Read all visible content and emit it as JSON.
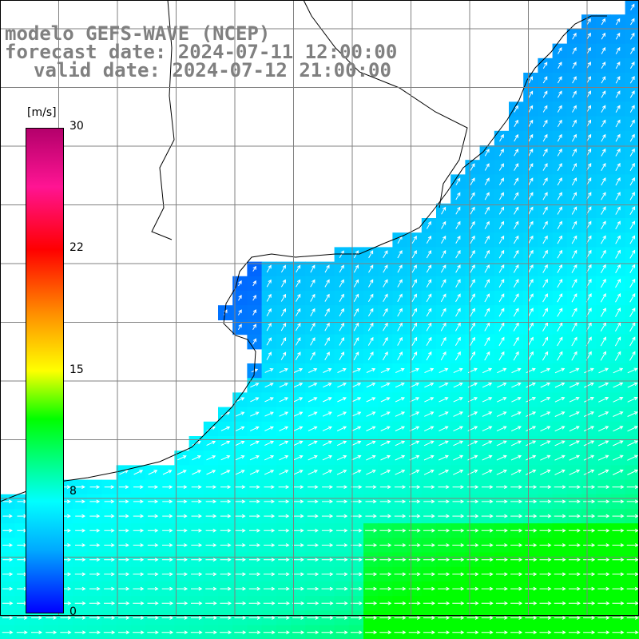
{
  "title": {
    "line1": "modelo GEFS-WAVE (NCEP)",
    "line2": "forecast date: 2024-07-11 12:00:00",
    "line3": "valid date: 2024-07-12 21:00:00"
  },
  "colorbar": {
    "unit": "[m/s]",
    "ticks": [
      "30",
      "22",
      "15",
      "8",
      "0"
    ],
    "colors": [
      "#0000ff",
      "#00aaff",
      "#00ffff",
      "#00ff00",
      "#ffff00",
      "#ff8c00",
      "#ff0000",
      "#ff1493",
      "#b3006b"
    ],
    "range": [
      0,
      30
    ]
  },
  "map": {
    "land_color": "#ffffff",
    "coast_color": "#000000",
    "grid_color": "#808080",
    "arrow_color": "#ffffff",
    "grid": true
  }
}
